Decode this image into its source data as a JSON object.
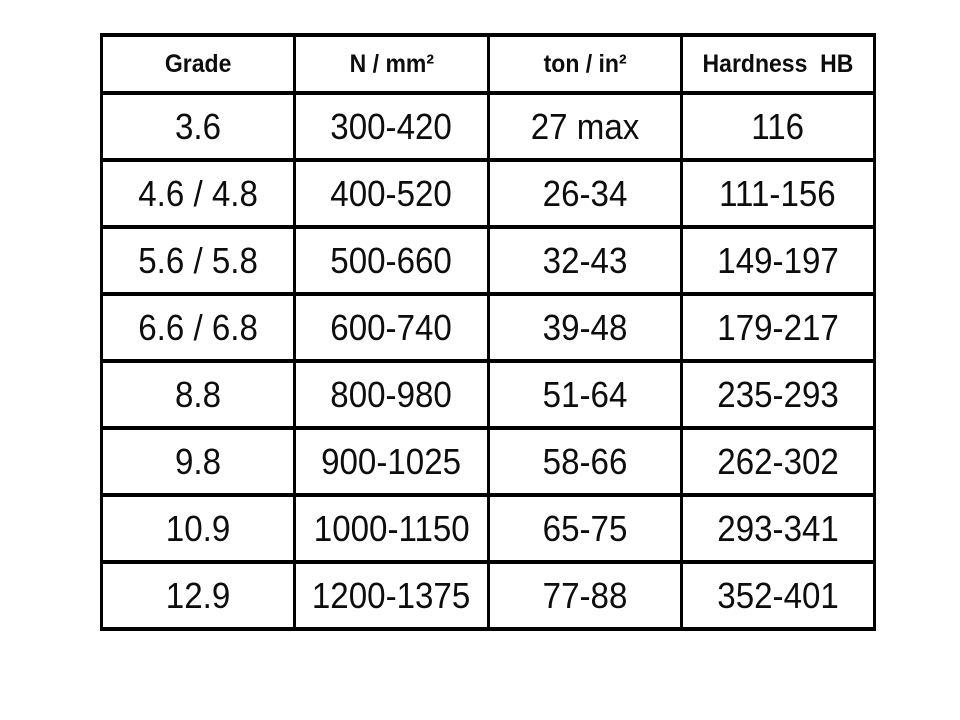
{
  "table": {
    "title": "bolt-grade-mechanical-properties",
    "colors": {
      "background": "#ffffff",
      "border": "#000000",
      "text": "#0d0d0d"
    },
    "headers": [
      "Grade",
      "N / mm²",
      "ton / in²",
      "Hardness  HB"
    ],
    "rows": [
      [
        "3.6",
        "300-420",
        "27 max",
        "116"
      ],
      [
        "4.6 / 4.8",
        "400-520",
        "26-34",
        "111-156"
      ],
      [
        "5.6 / 5.8",
        "500-660",
        "32-43",
        "149-197"
      ],
      [
        "6.6 / 6.8",
        "600-740",
        "39-48",
        "179-217"
      ],
      [
        "8.8",
        "800-980",
        "51-64",
        "235-293"
      ],
      [
        "9.8",
        "900-1025",
        "58-66",
        "262-302"
      ],
      [
        "10.9",
        "1000-1150",
        "65-75",
        "293-341"
      ],
      [
        "12.9",
        "1200-1375",
        "77-88",
        "352-401"
      ]
    ]
  }
}
